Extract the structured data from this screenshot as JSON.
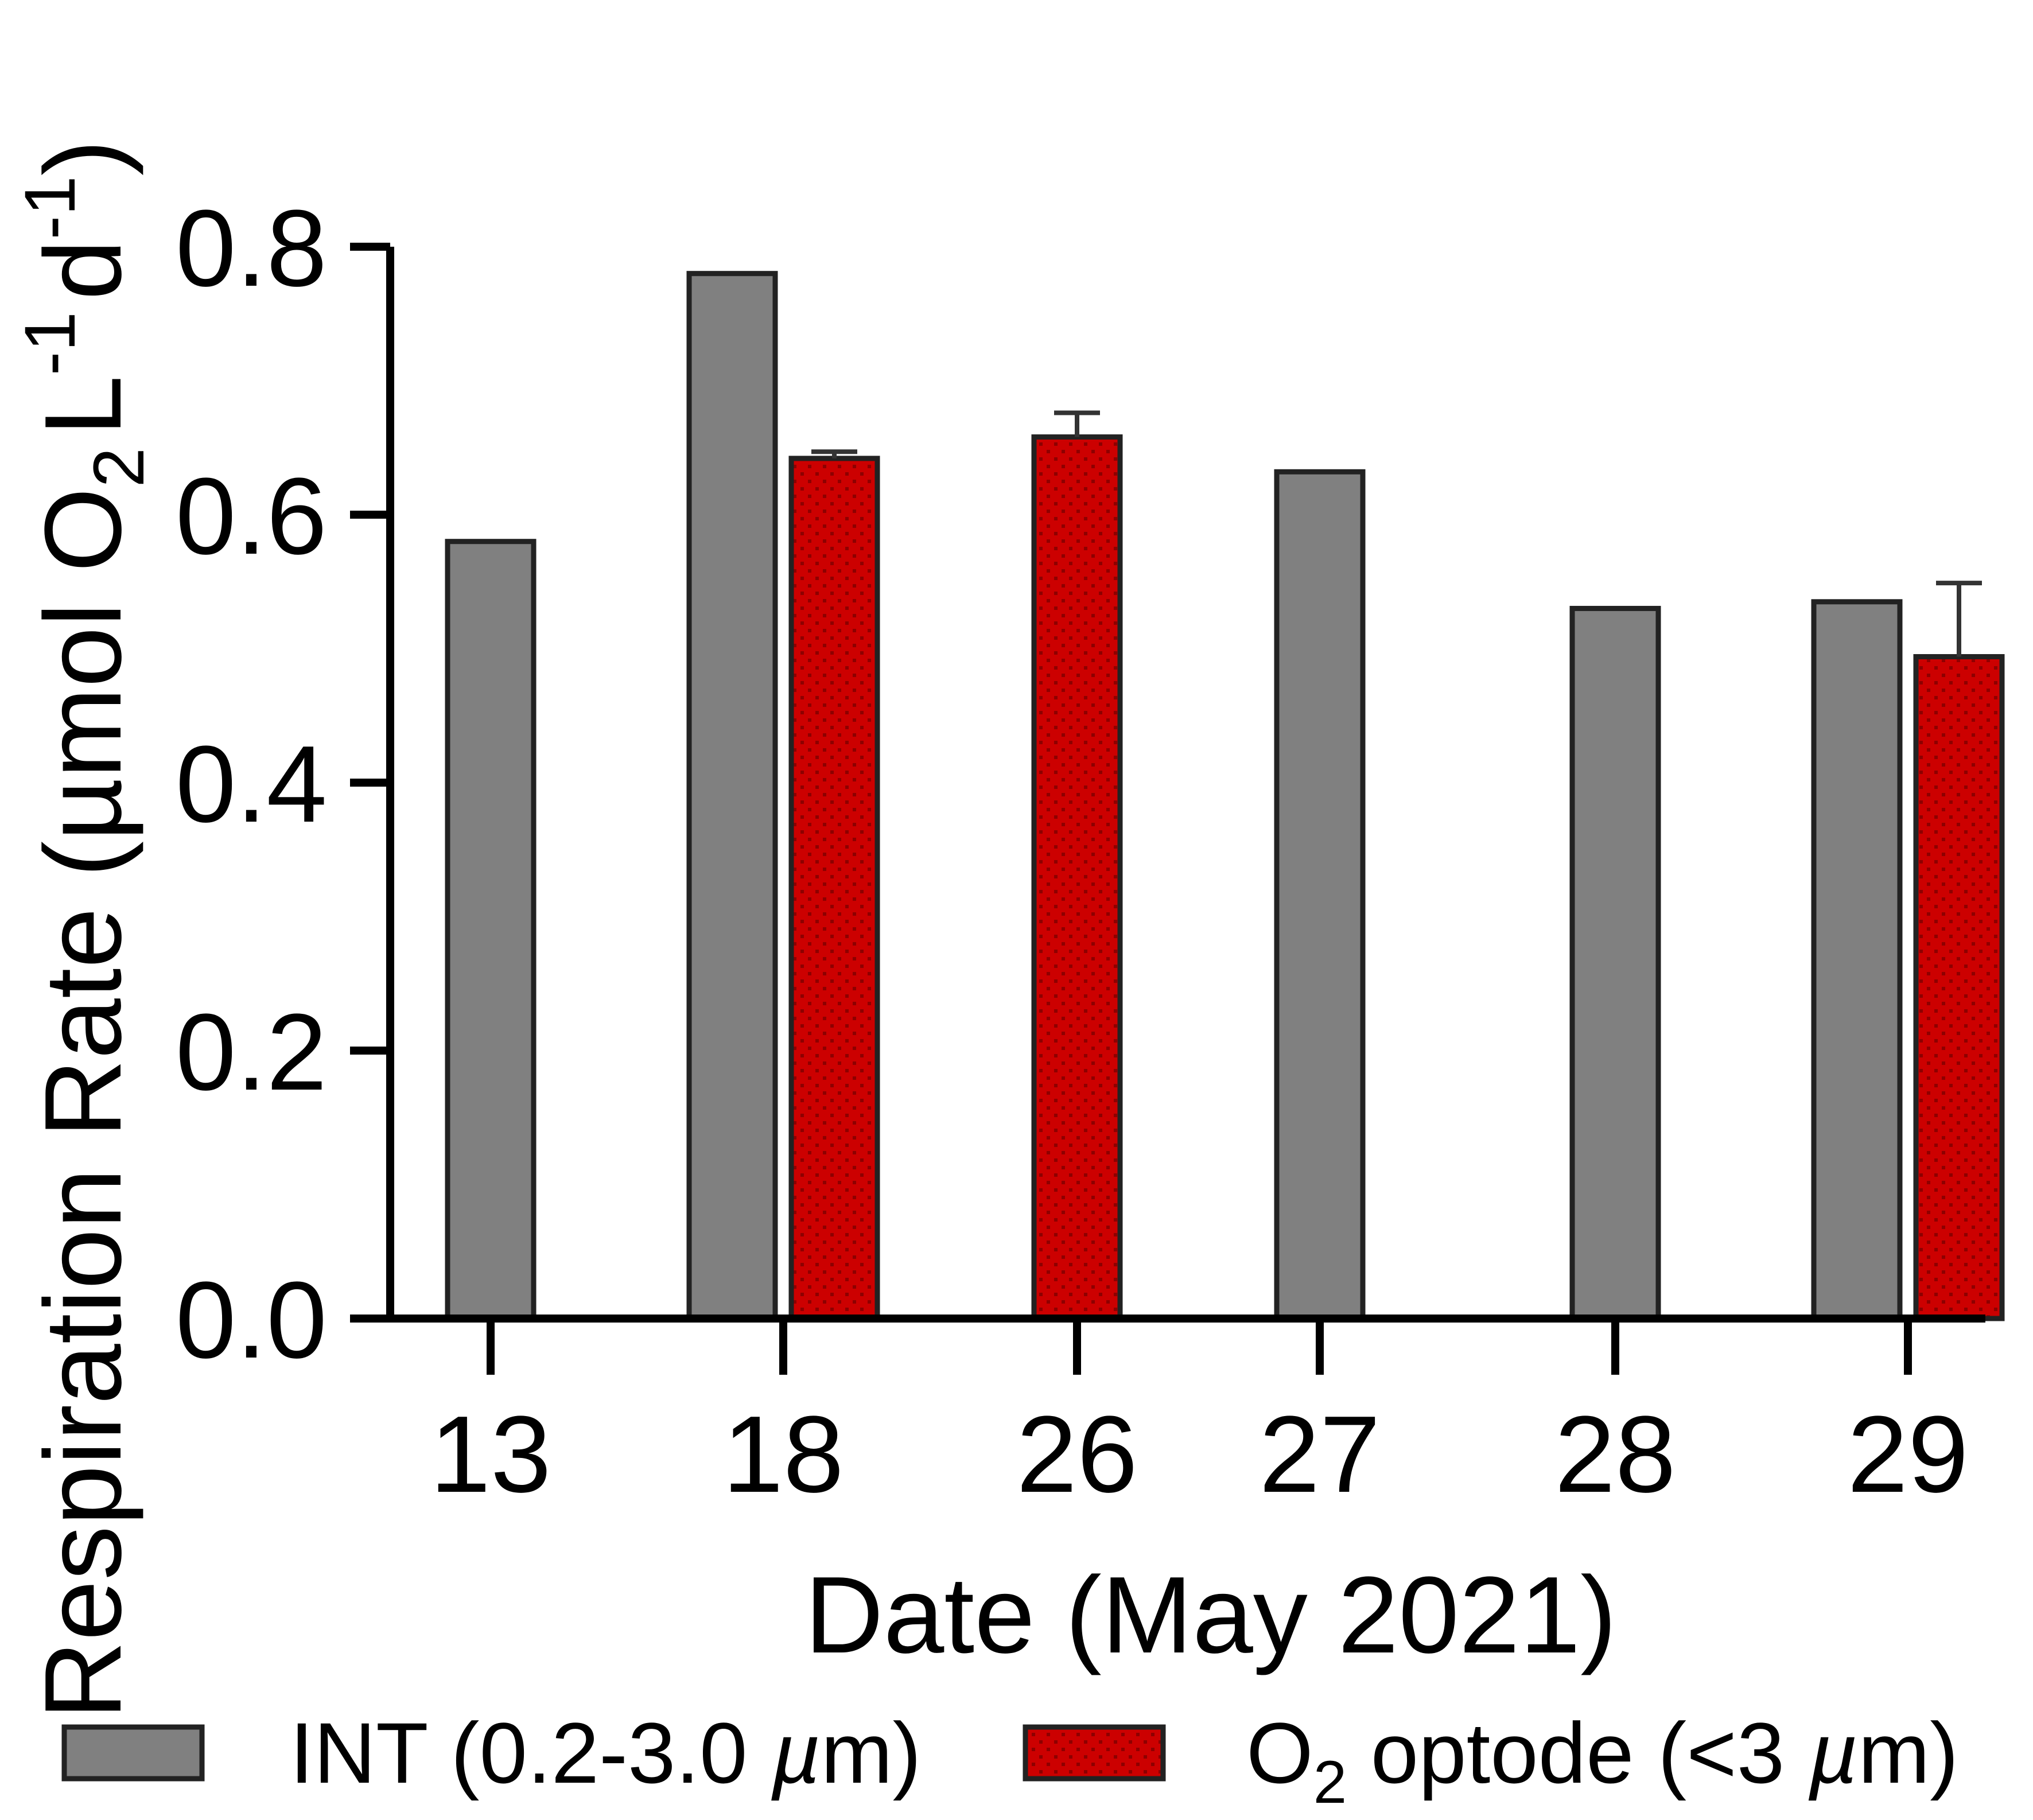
{
  "chart_data": {
    "type": "bar",
    "xlabel": "Date (May 2021)",
    "ylabel": {
      "main": "Respiration Rate (µmol O",
      "sub": "2",
      "unit_L": "L",
      "sup1": "-1",
      "unit_d": "d",
      "sup2": "-1",
      "close": ")"
    },
    "ylim": [
      0,
      0.8
    ],
    "yticks": [
      "0.0",
      "0.2",
      "0.4",
      "0.6",
      "0.8"
    ],
    "ytick_values": [
      0.0,
      0.2,
      0.4,
      0.6,
      0.8
    ],
    "categories": [
      "13",
      "18",
      "26",
      "27",
      "28",
      "29"
    ],
    "grid": false,
    "legend_position": "bottom",
    "series": [
      {
        "name": "INT (0.2-3.0 µm)",
        "legend": {
          "before": "INT (0.2-3.0 ",
          "italic": "µ",
          "after": "m)"
        },
        "color": "#808080",
        "values": [
          0.58,
          0.78,
          null,
          0.632,
          0.53,
          0.535
        ],
        "errors": [
          null,
          null,
          null,
          null,
          null,
          null
        ]
      },
      {
        "name": "O2 optode (<3 µm)",
        "legend": {
          "before": "O",
          "sub": "2",
          "mid": " optode (<3 ",
          "italic": "µ",
          "after": "m)"
        },
        "color": "#cc0000",
        "values": [
          null,
          0.642,
          0.658,
          null,
          null,
          0.494
        ],
        "errors": [
          null,
          0.005,
          0.018,
          null,
          null,
          0.055
        ]
      }
    ]
  }
}
